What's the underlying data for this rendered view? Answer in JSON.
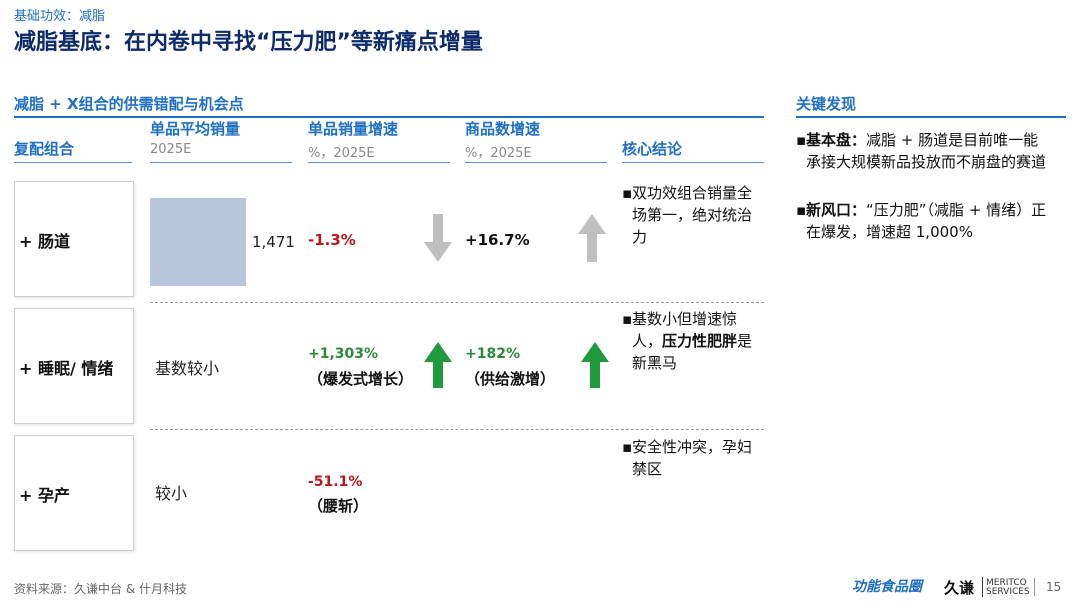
{
  "header": {
    "kicker": "基础功效：减脂",
    "title": "减脂基底：在内卷中寻找“压力肥”等新痛点增量"
  },
  "left_section": {
    "title": "减脂 + X组合的供需错配与机会点",
    "columns": {
      "combo": {
        "label": "复配组合"
      },
      "avg_sales": {
        "label": "单品平均销量",
        "sub": "2025E"
      },
      "sales_growth": {
        "label": "单品销量增速",
        "sub": "%，2025E"
      },
      "sku_growth": {
        "label": "商品数增速",
        "sub": "%，2025E"
      },
      "conclusion": {
        "label": "核心结论"
      }
    },
    "rows": [
      {
        "label": "+ 肠道",
        "avg_sales_value": "1,471",
        "sales_growth": "-1.3%",
        "sales_growth_arrow": "down",
        "sku_growth": "+16.7%",
        "sku_growth_arrow": "up-gray",
        "conclusion": "双功效组合销量全场第一，绝对统治力"
      },
      {
        "label": "+ 睡眠/ 情绪",
        "avg_sales_text": "基数较小",
        "sales_growth": "+1,303%",
        "sales_growth_note": "（爆发式增长）",
        "sales_growth_arrow": "up-green",
        "sku_growth": "+182%",
        "sku_growth_note": "（供给激增）",
        "sku_growth_arrow": "up-green",
        "conclusion_plain": "基数小但增速惊人，",
        "conclusion_bold": "压力性肥胖",
        "conclusion_tail": "是新黑马"
      },
      {
        "label": "+ 孕产",
        "avg_sales_text": "较小",
        "sales_growth": "-51.1%",
        "sales_growth_note": "（腰斩）",
        "conclusion": "安全性冲突，孕妇禁区"
      }
    ]
  },
  "right_section": {
    "title": "关键发现",
    "findings": [
      {
        "bold": "基本盘：",
        "text": "减脂 + 肠道是目前唯一能承接大规模新品投放而不崩盘的赛道"
      },
      {
        "bold": "新风口：",
        "text": "“压力肥”（减脂 + 情绪）正在爆发，增速超 1,000%"
      }
    ]
  },
  "footer": {
    "source": "资料来源：久谦中台 & 什月科技",
    "logo_left": "功能食品圈",
    "logo_right_cn": "久谦",
    "logo_right_en1": "MERITCO",
    "logo_right_en2": "SERVICES",
    "page_number": "15"
  },
  "colors": {
    "accent": "#1f6fc2",
    "title": "#0d2a6b",
    "negative": "#c0141b",
    "positive": "#2a8a3a",
    "bar": "#b8c6dd",
    "gray_arrow": "#bfbfbf"
  },
  "chart_data": {
    "type": "bar",
    "categories": [
      "+ 肠道"
    ],
    "values": [
      1471
    ],
    "title": "单品平均销量",
    "xlabel": "",
    "ylabel": "2025E"
  }
}
